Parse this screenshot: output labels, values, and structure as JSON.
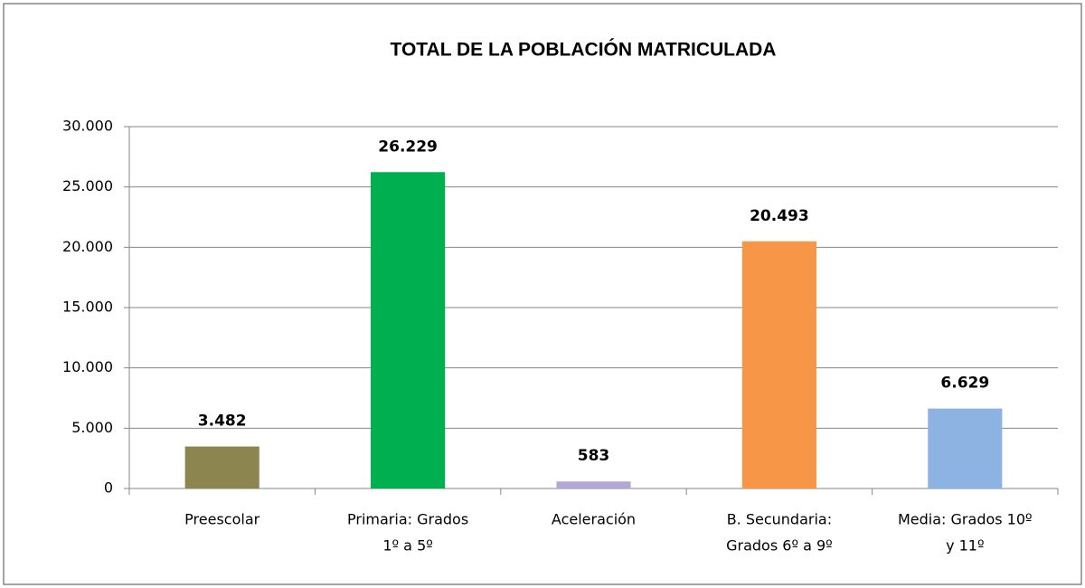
{
  "chart_data": {
    "type": "bar",
    "title": "TOTAL DE LA POBLACIÓN MATRICULADA",
    "categories": [
      [
        "Preescolar"
      ],
      [
        "Primaria: Grados",
        "1º a 5º"
      ],
      [
        "Aceleración"
      ],
      [
        "B. Secundaria:",
        "Grados 6º a 9º"
      ],
      [
        "Media: Grados 10º",
        "y 11º"
      ]
    ],
    "values": [
      3482,
      26229,
      583,
      20493,
      6629
    ],
    "value_labels": [
      "3.482",
      "26.229",
      "583",
      "20.493",
      "6.629"
    ],
    "colors": [
      "#8c8550",
      "#00b050",
      "#b4a7d6",
      "#f79646",
      "#8db3e2"
    ],
    "ylim": [
      0,
      30000
    ],
    "yticks": [
      0,
      {
        "value": 5000,
        "label": "5.000"
      },
      {
        "value": 10000,
        "label": "10.000"
      },
      {
        "value": 15000,
        "label": "15.000"
      },
      {
        "value": 20000,
        "label": "20.000"
      },
      {
        "value": 25000,
        "label": "25.000"
      },
      {
        "value": 30000,
        "label": "30.000"
      }
    ],
    "grid": true
  }
}
